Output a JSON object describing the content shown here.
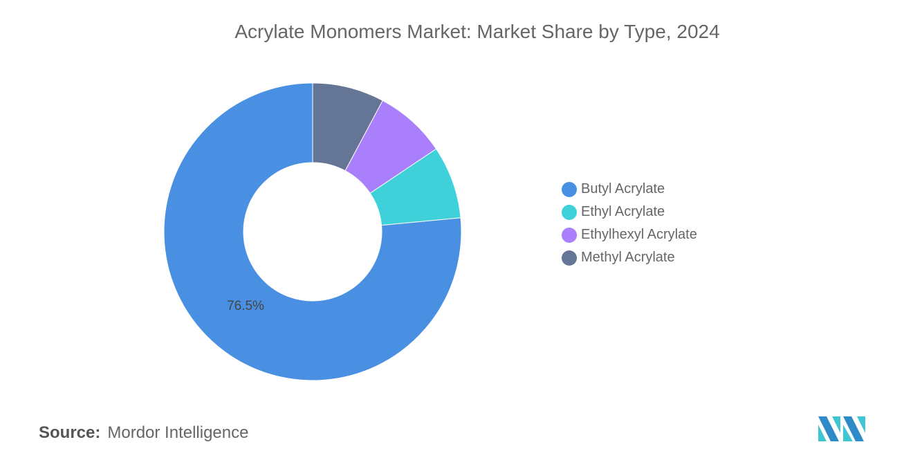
{
  "title": "Acrylate Monomers Market: Market Share by Type, 2024",
  "source_label": "Source:",
  "source_value": "Mordor Intelligence",
  "logo_text": "Mordor Intelligence",
  "chart_data": {
    "type": "pie",
    "donut": true,
    "title": "Acrylate Monomers Market: Market Share by Type, 2024",
    "legend_position": "right",
    "series": [
      {
        "name": "Butyl Acrylate",
        "value": 76.5,
        "color": "#4a90e2",
        "label": "76.5%"
      },
      {
        "name": "Ethyl Acrylate",
        "value": 7.9,
        "color": "#3ed1da",
        "label": ""
      },
      {
        "name": "Ethylhexyl Acrylate",
        "value": 7.8,
        "color": "#a97ffc",
        "label": ""
      },
      {
        "name": "Methyl Acrylate",
        "value": 7.8,
        "color": "#647596",
        "label": ""
      }
    ]
  }
}
